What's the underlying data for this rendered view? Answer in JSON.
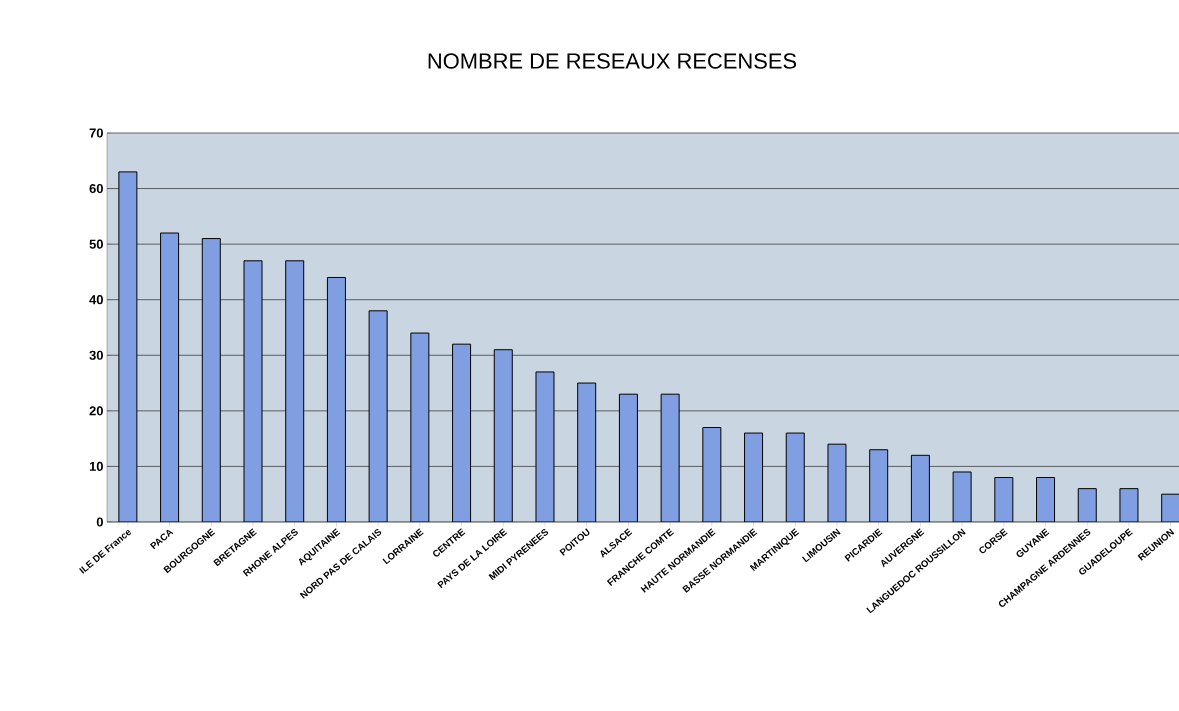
{
  "chart_data": {
    "type": "bar",
    "title": "NOMBRE DE RESEAUX RECENSES",
    "categories": [
      "ILE DE France",
      "PACA",
      "BOURGOGNE",
      "BRETAGNE",
      "RHONE ALPES",
      "AQUITAINE",
      "NORD PAS DE CALAIS",
      "LORRAINE",
      "CENTRE",
      "PAYS DE LA LOIRE",
      "MIDI PYRENEES",
      "POITOU",
      "ALSACE",
      "FRANCHE COMTE",
      "HAUTE NORMANDIE",
      "BASSE NORMANDIE",
      "MARTINIQUE",
      "LIMOUSIN",
      "PICARDIE",
      "AUVERGNE",
      "LANGUEDOC ROUSSILLON",
      "CORSE",
      "GUYANE",
      "CHAMPAGNE ARDENNES",
      "GUADELOUPE",
      "REUNION"
    ],
    "values": [
      63,
      52,
      51,
      47,
      47,
      44,
      38,
      34,
      32,
      31,
      27,
      25,
      23,
      23,
      17,
      16,
      16,
      14,
      13,
      12,
      9,
      8,
      8,
      6,
      6,
      5
    ],
    "color": "#809fe2",
    "ylim": [
      0,
      70
    ],
    "yticks": [
      0,
      10,
      20,
      30,
      40,
      50,
      60,
      70
    ],
    "grid": "y"
  }
}
